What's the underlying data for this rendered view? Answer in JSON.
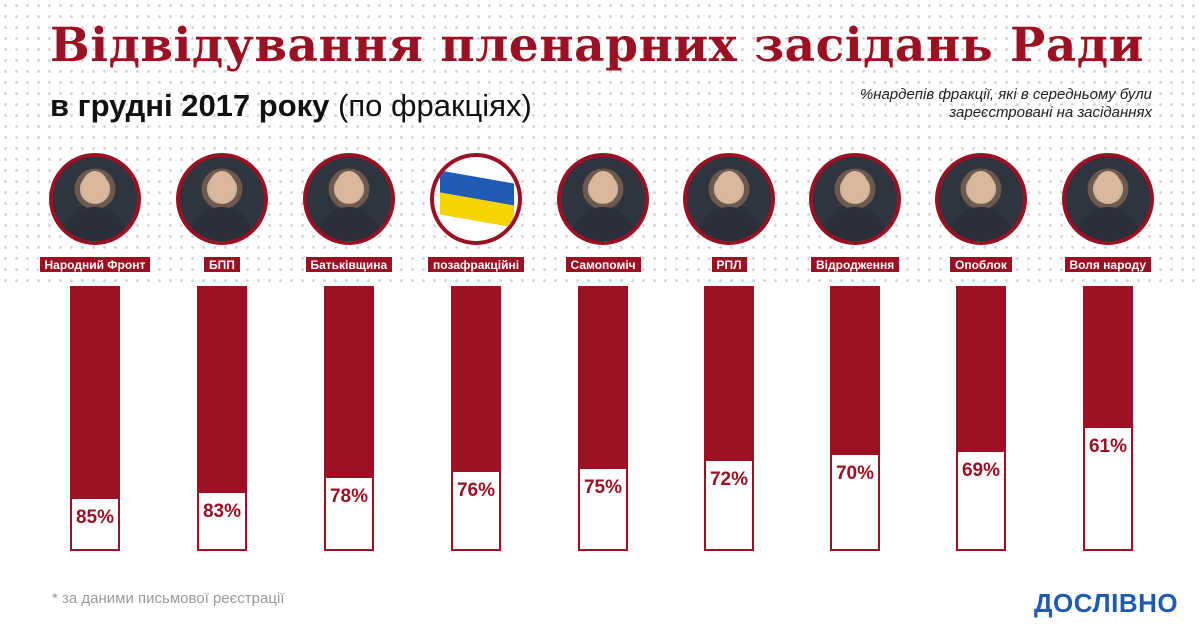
{
  "header": {
    "title": "Відвідування пленарних засідань Ради",
    "subtitle_bold": "в грудні 2017 року",
    "subtitle_rest": " (по фракціях)",
    "note": "%нардепів фракції, які в середньому були зареєстровані на засіданнях"
  },
  "chart_data": {
    "type": "bar",
    "categories": [
      "Народний Фронт",
      "БПП",
      "Батьківщина",
      "позафракційні",
      "Самопоміч",
      "РПЛ",
      "Відродження",
      "Опоблок",
      "Воля народу"
    ],
    "values": [
      85,
      83,
      78,
      76,
      75,
      72,
      70,
      69,
      61
    ],
    "value_labels": [
      "85%",
      "83%",
      "78%",
      "76%",
      "75%",
      "72%",
      "70%",
      "69%",
      "61%"
    ],
    "ylim": [
      0,
      100
    ],
    "colors": {
      "bar": "#9b1022",
      "text": "#9b1022"
    }
  },
  "photos": [
    "person-icon",
    "person-icon",
    "person-icon",
    "flag-icon",
    "person-icon",
    "person-icon",
    "person-icon",
    "person-icon",
    "person-icon"
  ],
  "footer": {
    "footnote": "* за даними письмової реєстрації",
    "logo": "ДОСЛІВНО"
  }
}
